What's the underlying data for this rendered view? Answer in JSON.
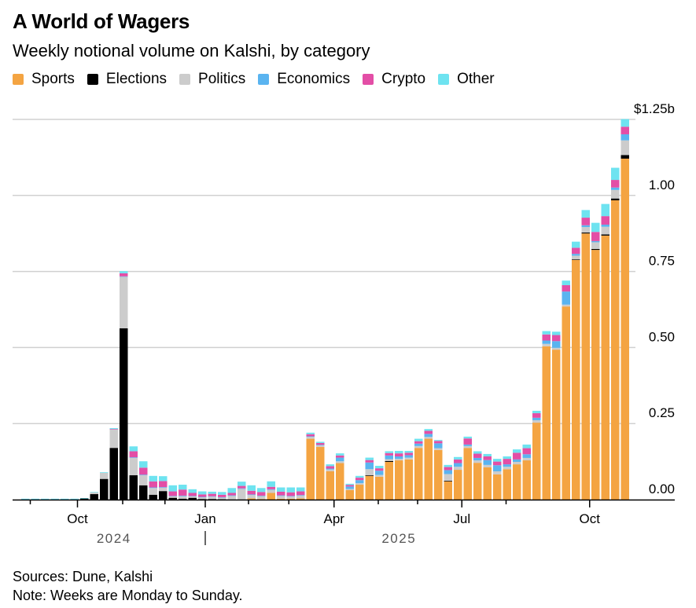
{
  "header": {
    "title": "A World of Wagers",
    "subtitle": "Weekly notional volume on Kalshi, by category"
  },
  "legend": [
    {
      "name": "Sports",
      "color": "#f4a442"
    },
    {
      "name": "Elections",
      "color": "#000000"
    },
    {
      "name": "Politics",
      "color": "#cccccc"
    },
    {
      "name": "Economics",
      "color": "#5ab4f0"
    },
    {
      "name": "Crypto",
      "color": "#e34ea6"
    },
    {
      "name": "Other",
      "color": "#6ee3f0"
    }
  ],
  "footer": {
    "sources": "Sources: Dune, Kalshi",
    "note": "Note: Weeks are Monday to Sunday."
  },
  "chart_data": {
    "type": "bar",
    "stacked": true,
    "title": "A World of Wagers",
    "subtitle": "Weekly notional volume on Kalshi, by category",
    "xlabel": "",
    "ylabel": "",
    "units": "USD billions",
    "ylim": [
      0,
      1.25
    ],
    "yticks": [
      {
        "value": 0,
        "label": "0.00"
      },
      {
        "value": 0.25,
        "label": "0.25"
      },
      {
        "value": 0.5,
        "label": "0.50"
      },
      {
        "value": 0.75,
        "label": "0.75"
      },
      {
        "value": 1.0,
        "label": "1.00"
      },
      {
        "value": 1.25,
        "label": "$1.25b"
      }
    ],
    "grid": true,
    "legend_position": "top-left",
    "xticks": [
      {
        "bar_index": 5.3,
        "label": "Oct"
      },
      {
        "bar_index": 18.3,
        "label": "Jan"
      },
      {
        "bar_index": 31.4,
        "label": "Apr"
      },
      {
        "bar_index": 44.4,
        "label": "Jul"
      },
      {
        "bar_index": 57.4,
        "label": "Oct"
      }
    ],
    "minor_ticks_bar_index": [
      0.5,
      9.9,
      14.2,
      22.7,
      26.8,
      35.9,
      39.9,
      48.9
    ],
    "year_labels": [
      {
        "label": "2024",
        "bar_index": 9.0
      },
      {
        "label": "2025",
        "bar_index": 38.0
      }
    ],
    "year_divider_bar_index": 18.3,
    "week_count": 62,
    "series": [
      {
        "name": "Sports",
        "values": [
          0,
          0,
          0,
          0,
          0,
          0,
          0,
          0,
          0,
          0,
          0,
          0,
          0,
          0,
          0,
          0,
          0,
          0,
          0,
          0,
          0,
          0,
          0,
          0.004,
          0.002,
          0.022,
          0.003,
          0.003,
          0.004,
          0.2,
          0.173,
          0.093,
          0.12,
          0.031,
          0.049,
          0.078,
          0.075,
          0.124,
          0.129,
          0.132,
          0.17,
          0.2,
          0.163,
          0.06,
          0.098,
          0.17,
          0.121,
          0.106,
          0.083,
          0.1,
          0.116,
          0.129,
          0.253,
          0.504,
          0.493,
          0.635,
          0.788,
          0.875,
          0.821,
          0.868,
          0.984,
          1.121
        ]
      },
      {
        "name": "Elections",
        "values": [
          0,
          0,
          0,
          0,
          0,
          0,
          0.004,
          0.018,
          0.068,
          0.17,
          0.563,
          0.08,
          0.047,
          0.016,
          0.028,
          0.006,
          0.003,
          0.006,
          0.002,
          0.002,
          0.001,
          0,
          0,
          0,
          0,
          0,
          0,
          0,
          0,
          0,
          0,
          0,
          0,
          0,
          0,
          0.002,
          0,
          0.003,
          0,
          0,
          0,
          0,
          0,
          0.002,
          0,
          0,
          0,
          0,
          0,
          0,
          0,
          0,
          0,
          0,
          0,
          0,
          0.002,
          0.003,
          0.003,
          0.004,
          0.006,
          0.012
        ]
      },
      {
        "name": "Politics",
        "values": [
          0,
          0,
          0,
          0,
          0,
          0,
          0,
          0.006,
          0.02,
          0.06,
          0.17,
          0.057,
          0.033,
          0.022,
          0.011,
          0.005,
          0.008,
          0.005,
          0.006,
          0.008,
          0.006,
          0.012,
          0.035,
          0.011,
          0.01,
          0.01,
          0.009,
          0.007,
          0.009,
          0.006,
          0.005,
          0.006,
          0.006,
          0.004,
          0.005,
          0.02,
          0.006,
          0.006,
          0.005,
          0.006,
          0.006,
          0.006,
          0.006,
          0.022,
          0.01,
          0.006,
          0.008,
          0.008,
          0.01,
          0.008,
          0.008,
          0.008,
          0.008,
          0.008,
          0.006,
          0.006,
          0.012,
          0.018,
          0.022,
          0.025,
          0.028,
          0.048
        ]
      },
      {
        "name": "Economics",
        "values": [
          0.001,
          0.001,
          0.001,
          0.001,
          0.001,
          0.001,
          0,
          0,
          0,
          0,
          0.001,
          0.002,
          0.002,
          0.002,
          0.002,
          0.001,
          0.002,
          0.001,
          0.001,
          0.001,
          0.001,
          0.002,
          0.002,
          0.002,
          0.001,
          0.002,
          0.002,
          0.002,
          0.002,
          0.002,
          0.002,
          0.003,
          0.012,
          0.008,
          0.01,
          0.022,
          0.014,
          0.012,
          0.008,
          0.008,
          0.008,
          0.01,
          0.016,
          0.013,
          0.012,
          0.005,
          0.008,
          0.016,
          0.02,
          0.008,
          0.008,
          0.012,
          0.008,
          0.011,
          0.022,
          0.043,
          0.006,
          0.006,
          0.004,
          0.007,
          0.008,
          0.02
        ]
      },
      {
        "name": "Crypto",
        "values": [
          0,
          0,
          0,
          0,
          0,
          0,
          0,
          0,
          0,
          0.002,
          0.01,
          0.02,
          0.023,
          0.02,
          0.02,
          0.015,
          0.02,
          0.01,
          0.008,
          0.008,
          0.008,
          0.008,
          0.008,
          0.012,
          0.012,
          0.008,
          0.012,
          0.012,
          0.012,
          0.007,
          0.006,
          0.008,
          0.007,
          0.005,
          0.008,
          0.008,
          0.008,
          0.008,
          0.01,
          0.008,
          0.008,
          0.01,
          0.008,
          0.01,
          0.012,
          0.02,
          0.014,
          0.012,
          0.012,
          0.018,
          0.022,
          0.02,
          0.015,
          0.02,
          0.02,
          0.021,
          0.02,
          0.025,
          0.03,
          0.028,
          0.025,
          0.025
        ]
      },
      {
        "name": "Other",
        "values": [
          0.002,
          0.002,
          0.002,
          0.002,
          0.002,
          0.002,
          0.001,
          0.001,
          0.002,
          0.003,
          0.007,
          0.016,
          0.021,
          0.018,
          0.016,
          0.02,
          0.016,
          0.012,
          0.01,
          0.007,
          0.009,
          0.016,
          0.014,
          0.018,
          0.013,
          0.018,
          0.014,
          0.016,
          0.013,
          0.005,
          0.004,
          0.006,
          0.007,
          0.004,
          0.006,
          0.008,
          0.008,
          0.006,
          0.008,
          0.006,
          0.008,
          0.006,
          0.003,
          0.007,
          0.008,
          0.006,
          0.008,
          0.008,
          0.009,
          0.008,
          0.011,
          0.012,
          0.008,
          0.011,
          0.011,
          0.015,
          0.02,
          0.025,
          0.03,
          0.04,
          0.04,
          0.025
        ]
      }
    ]
  }
}
